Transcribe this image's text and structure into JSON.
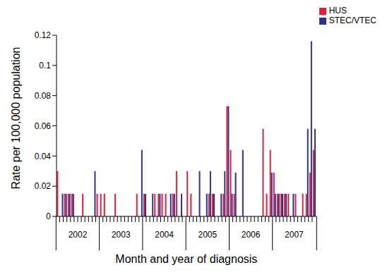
{
  "chart_data": {
    "type": "bar",
    "x_label": "Month and year of diagnosis",
    "y_label": "Rate per 100,000 population",
    "categories": [
      null,
      null,
      null,
      null,
      null,
      null,
      "2002",
      null,
      null,
      null,
      null,
      null,
      null,
      null,
      null,
      null,
      null,
      null,
      "2003",
      null,
      null,
      null,
      null,
      null,
      null,
      null,
      null,
      null,
      null,
      null,
      "2004",
      null,
      null,
      null,
      null,
      null,
      null,
      null,
      null,
      null,
      null,
      null,
      "2005",
      null,
      null,
      null,
      null,
      null,
      null,
      null,
      null,
      null,
      null,
      null,
      "2006",
      null,
      null,
      null,
      null,
      null,
      null,
      null,
      null,
      null,
      null,
      null,
      "2007",
      null,
      null,
      null,
      null,
      null
    ],
    "series": [
      {
        "name": "HUS",
        "color": "#e2203c",
        "values": [
          0.03,
          0,
          0.015,
          0.015,
          0.015,
          0,
          0,
          0.015,
          0,
          0,
          0,
          0.015,
          0.015,
          0.015,
          0,
          0,
          0.015,
          0,
          0,
          0,
          0,
          0,
          0.015,
          0,
          0.015,
          0,
          0,
          0.015,
          0.015,
          0.015,
          0.015,
          0,
          0.015,
          0.03,
          0,
          0,
          0.03,
          0.015,
          0,
          0,
          0,
          0,
          0.015,
          0.015,
          0,
          0,
          0.015,
          0.073,
          0.044,
          0.015,
          0,
          0,
          0,
          0,
          0,
          0,
          0,
          0.058,
          0.015,
          0.044,
          0.029,
          0.015,
          0.015,
          0.015,
          0.015,
          0,
          0.015,
          0,
          0.015,
          0.015,
          0.029,
          0.044
        ]
      },
      {
        "name": "STEC/VTEC",
        "color": "#2e3192",
        "values": [
          0,
          0.015,
          0.015,
          0.015,
          0.015,
          0,
          0,
          0,
          0,
          0,
          0.03,
          0,
          0,
          0,
          0,
          0,
          0,
          0,
          0,
          0,
          0,
          0,
          0,
          0.044,
          0.015,
          0,
          0.015,
          0,
          0.015,
          0,
          0,
          0.015,
          0.015,
          0,
          0.015,
          0,
          0,
          0,
          0,
          0.03,
          0,
          0.015,
          0.03,
          0.015,
          0,
          0.015,
          0.03,
          0.073,
          0.015,
          0.029,
          0,
          0.044,
          0,
          0,
          0,
          0,
          0,
          0,
          0,
          0.029,
          0.015,
          0.015,
          0.015,
          0.015,
          0,
          0.015,
          0,
          0,
          0,
          0.058,
          0.116,
          0.058
        ]
      }
    ],
    "ylim": [
      0,
      0.12
    ],
    "yticks": [
      0,
      0.02,
      0.04,
      0.06,
      0.08,
      0.1,
      0.12
    ],
    "legend": "top-right"
  }
}
